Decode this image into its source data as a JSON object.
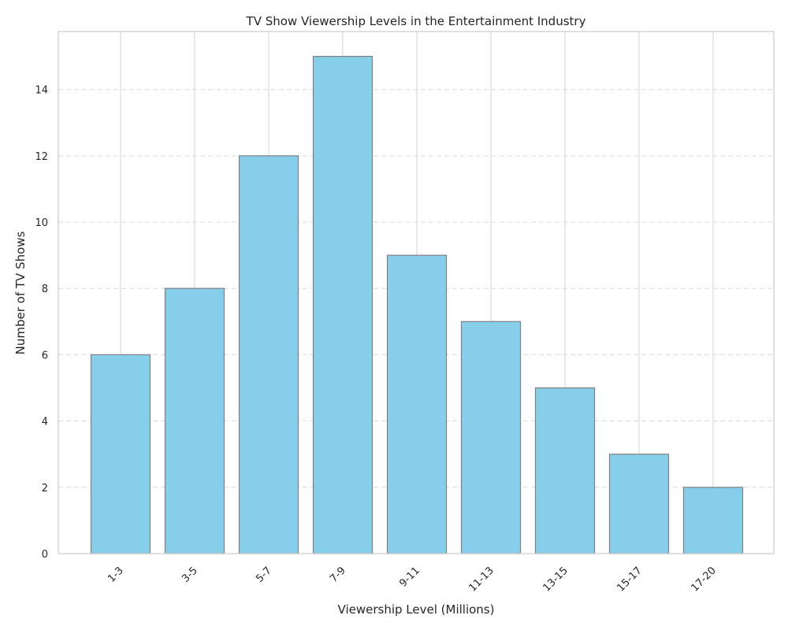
{
  "chart_data": {
    "type": "bar",
    "title": "TV Show Viewership Levels in the Entertainment Industry",
    "xlabel": "Viewership Level (Millions)",
    "ylabel": "Number of TV Shows",
    "categories": [
      "1-3",
      "3-5",
      "5-7",
      "7-9",
      "9-11",
      "11-13",
      "13-15",
      "15-17",
      "17-20"
    ],
    "values": [
      6,
      8,
      12,
      15,
      9,
      7,
      5,
      3,
      2
    ],
    "ylim": [
      0,
      15.75
    ],
    "yticks": [
      0,
      2,
      4,
      6,
      8,
      10,
      12,
      14
    ],
    "grid": true,
    "bar_color": "#87ceeb",
    "bar_edge_color": "#808080"
  }
}
